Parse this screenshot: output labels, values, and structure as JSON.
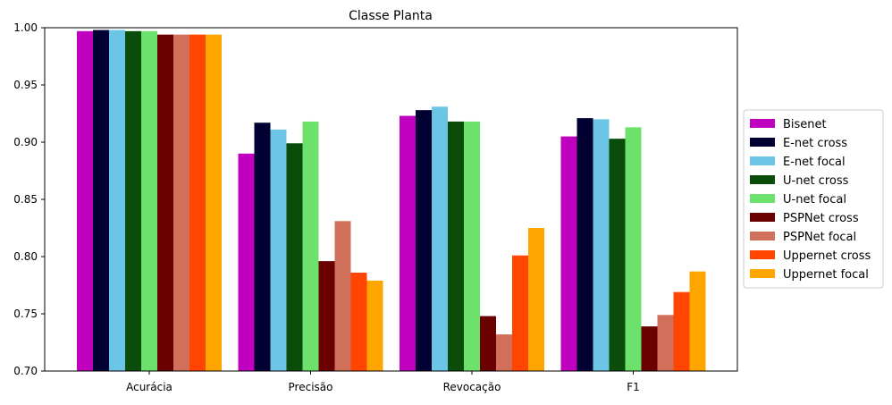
{
  "chart_data": {
    "type": "bar",
    "title": "Classe Planta",
    "xlabel": "",
    "ylabel": "",
    "ylim": [
      0.7,
      1.0
    ],
    "yticks": [
      "0.70",
      "0.75",
      "0.80",
      "0.85",
      "0.90",
      "0.95",
      "1.00"
    ],
    "grid": false,
    "legend_position": "center-right outside",
    "categories": [
      "Acurácia",
      "Precisão",
      "Revocação",
      "F1"
    ],
    "series": [
      {
        "name": "Bisenet",
        "color": "#bf00bf",
        "values": [
          0.997,
          0.89,
          0.923,
          0.905
        ]
      },
      {
        "name": "E-net cross",
        "color": "#000033",
        "values": [
          0.998,
          0.917,
          0.928,
          0.921
        ]
      },
      {
        "name": "E-net focal",
        "color": "#6cc4e6",
        "values": [
          0.998,
          0.911,
          0.931,
          0.92
        ]
      },
      {
        "name": "U-net cross",
        "color": "#0a4d0a",
        "values": [
          0.997,
          0.899,
          0.918,
          0.903
        ]
      },
      {
        "name": "U-net focal",
        "color": "#6ce26c",
        "values": [
          0.997,
          0.918,
          0.918,
          0.913
        ]
      },
      {
        "name": "PSPNet cross",
        "color": "#6b0000",
        "values": [
          0.994,
          0.796,
          0.748,
          0.739
        ]
      },
      {
        "name": "PSPNet focal",
        "color": "#d0705a",
        "values": [
          0.994,
          0.831,
          0.732,
          0.749
        ]
      },
      {
        "name": "Uppernet cross",
        "color": "#ff4500",
        "values": [
          0.994,
          0.786,
          0.801,
          0.769
        ]
      },
      {
        "name": "Uppernet focal",
        "color": "#ffa500",
        "values": [
          0.994,
          0.779,
          0.825,
          0.787
        ]
      }
    ]
  }
}
